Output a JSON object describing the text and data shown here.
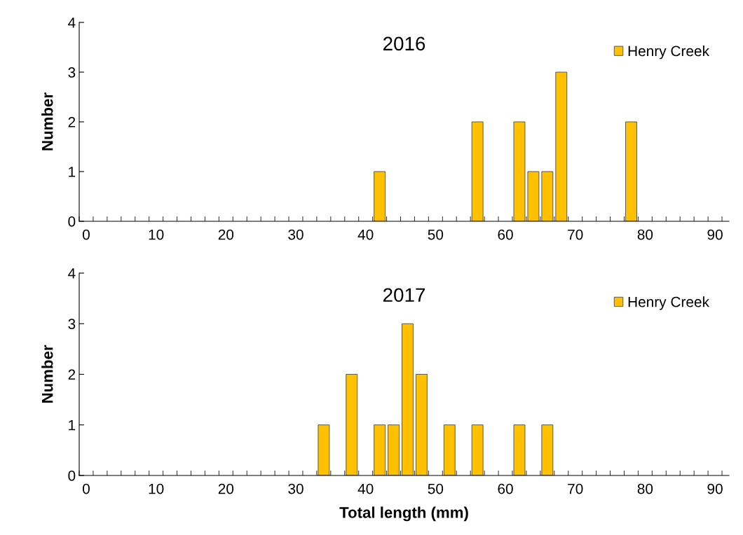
{
  "chart_data": [
    {
      "type": "bar",
      "title": "2016",
      "ylabel": "Number",
      "x": [
        42,
        56,
        62,
        64,
        66,
        68,
        78
      ],
      "series": [
        {
          "name": "Henry Creek",
          "color": "#ffc000",
          "values": [
            1,
            2,
            2,
            1,
            1,
            3,
            2
          ]
        }
      ],
      "xlim": [
        -1,
        92
      ],
      "xticks": [
        0,
        10,
        20,
        30,
        40,
        50,
        60,
        70,
        80,
        90
      ],
      "ylim": [
        0,
        4
      ],
      "yticks": [
        0,
        1,
        2,
        3,
        4
      ],
      "grid": false,
      "legend": "top right"
    },
    {
      "type": "bar",
      "title": "2017",
      "ylabel": "Number",
      "xlabel": "Total length (mm)",
      "x": [
        34,
        38,
        42,
        44,
        46,
        48,
        52,
        56,
        62,
        66
      ],
      "series": [
        {
          "name": "Henry Creek",
          "color": "#ffc000",
          "values": [
            1,
            2,
            1,
            1,
            3,
            2,
            1,
            1,
            1,
            1
          ]
        }
      ],
      "xlim": [
        -1,
        92
      ],
      "xticks": [
        0,
        10,
        20,
        30,
        40,
        50,
        60,
        70,
        80,
        90
      ],
      "ylim": [
        0,
        4
      ],
      "yticks": [
        0,
        1,
        2,
        3,
        4
      ],
      "grid": false,
      "legend": "top right"
    }
  ]
}
